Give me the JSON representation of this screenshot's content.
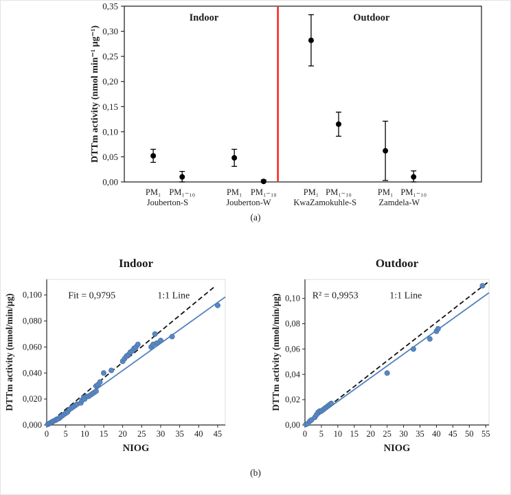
{
  "figure": {
    "label_a": "(a)",
    "label_b": "(b)"
  },
  "chart_data": [
    {
      "id": "dtt-activity-by-site",
      "type": "scatter",
      "subtype": "points-with-error-bars",
      "title": "",
      "xlabel": "",
      "ylabel": "DTTm activity (nmol min⁻¹ µg⁻¹)",
      "ylim": [
        0,
        0.35
      ],
      "yticks": [
        0,
        0.05,
        0.1,
        0.15,
        0.2,
        0.25,
        0.3,
        0.35
      ],
      "ytick_labels": [
        "0,00",
        "0,05",
        "0,10",
        "0,15",
        "0,20",
        "0,25",
        "0,30",
        "0,35"
      ],
      "grid": false,
      "region_labels": [
        {
          "label": "Indoor",
          "x": 0.223
        },
        {
          "label": "Outdoor",
          "x": 0.692
        }
      ],
      "divider": {
        "x": 0.43,
        "color": "#ff0000"
      },
      "point_color": "#000000",
      "points": [
        {
          "label": "PM₁",
          "group": "Jouberton-S",
          "x": 0.081,
          "value": 0.052,
          "err": 0.013
        },
        {
          "label": "PM₁₋₁₀",
          "group": "Jouberton-S",
          "x": 0.162,
          "value": 0.01,
          "err": 0.011
        },
        {
          "label": "PM₁",
          "group": "Jouberton-W",
          "x": 0.308,
          "value": 0.048,
          "err": 0.017
        },
        {
          "label": "PM₁₋₁₀",
          "group": "Jouberton-W",
          "x": 0.39,
          "value": 0.001,
          "err": 0.003
        },
        {
          "label": "PM₁",
          "group": "KwaZamokuhle-S",
          "x": 0.523,
          "value": 0.282,
          "err": 0.051
        },
        {
          "label": "PM₁₋₁₀",
          "group": "KwaZamokuhle-S",
          "x": 0.6,
          "value": 0.115,
          "err": 0.024
        },
        {
          "label": "PM₁",
          "group": "Zamdela-W",
          "x": 0.731,
          "value": 0.062,
          "err": 0.059
        },
        {
          "label": "PM₁₋₁₀",
          "group": "Zamdela-W",
          "x": 0.81,
          "value": 0.01,
          "err": 0.012
        }
      ],
      "group_labels": [
        {
          "label": "Jouberton-S",
          "x": 0.121
        },
        {
          "label": "Jouberton-W",
          "x": 0.348
        },
        {
          "label": "KwaZamokuhle-S",
          "x": 0.562
        },
        {
          "label": "Zamdela-W",
          "x": 0.77
        }
      ]
    },
    {
      "id": "indoor-correlation",
      "type": "scatter",
      "title": "Indoor",
      "xlabel": "NIOG",
      "ylabel": "DTTm activity (nmol/min/µg)",
      "xlim": [
        0,
        47
      ],
      "ylim": [
        0,
        0.112
      ],
      "xticks": [
        0,
        5,
        10,
        15,
        20,
        25,
        30,
        35,
        40,
        45
      ],
      "yticks": [
        0,
        0.02,
        0.04,
        0.06,
        0.08,
        0.1
      ],
      "ytick_labels": [
        "0,000",
        "0,020",
        "0,040",
        "0,060",
        "0,080",
        "0,100"
      ],
      "grid": false,
      "annotations": [
        {
          "text": "Fit = 0,9795",
          "fx": 0.12,
          "fy": 0.13
        },
        {
          "text": "1:1 Line",
          "fx": 0.62,
          "fy": 0.13
        }
      ],
      "fit_line": {
        "x": [
          0,
          47
        ],
        "y": [
          0,
          0.0985
        ]
      },
      "one_to_one_line": {
        "x": [
          0,
          44
        ],
        "y": [
          0,
          0.106
        ]
      },
      "point_color": "#5b87c0",
      "point_stroke": "#4472a8",
      "line_color": "#4f81bd",
      "points": [
        [
          0.3,
          0.0005
        ],
        [
          0.6,
          0.001
        ],
        [
          0.9,
          0.0015
        ],
        [
          1.2,
          0.002
        ],
        [
          1.5,
          0.0025
        ],
        [
          1.8,
          0.003
        ],
        [
          2.2,
          0.0035
        ],
        [
          2.5,
          0.004
        ],
        [
          2.8,
          0.0045
        ],
        [
          3.2,
          0.005
        ],
        [
          3.6,
          0.006
        ],
        [
          4,
          0.007
        ],
        [
          4.5,
          0.008
        ],
        [
          5,
          0.009
        ],
        [
          5.5,
          0.01
        ],
        [
          6,
          0.012
        ],
        [
          6.5,
          0.013
        ],
        [
          7,
          0.014
        ],
        [
          7.5,
          0.015
        ],
        [
          8,
          0.016
        ],
        [
          9,
          0.017
        ],
        [
          9.3,
          0.019
        ],
        [
          9.7,
          0.021
        ],
        [
          10,
          0.02
        ],
        [
          10.5,
          0.022
        ],
        [
          11,
          0.022
        ],
        [
          11.5,
          0.023
        ],
        [
          12,
          0.024
        ],
        [
          12.5,
          0.025
        ],
        [
          13,
          0.026
        ],
        [
          13,
          0.03
        ],
        [
          13.5,
          0.031
        ],
        [
          14,
          0.033
        ],
        [
          15,
          0.04
        ],
        [
          17,
          0.042
        ],
        [
          20,
          0.049
        ],
        [
          20.5,
          0.051
        ],
        [
          21,
          0.053
        ],
        [
          21.5,
          0.054
        ],
        [
          22,
          0.056
        ],
        [
          22.5,
          0.057
        ],
        [
          23,
          0.059
        ],
        [
          23.5,
          0.06
        ],
        [
          24,
          0.062
        ],
        [
          27.5,
          0.06
        ],
        [
          28,
          0.062
        ],
        [
          28.5,
          0.07
        ],
        [
          29,
          0.063
        ],
        [
          30,
          0.065
        ],
        [
          33,
          0.068
        ],
        [
          45,
          0.092
        ]
      ]
    },
    {
      "id": "outdoor-correlation",
      "type": "scatter",
      "title": "Outdoor",
      "xlabel": "NIOG",
      "ylabel": "DTTm activity (nmol/min/µg)",
      "xlim": [
        0,
        56
      ],
      "ylim": [
        0,
        0.115
      ],
      "xticks": [
        0,
        5,
        10,
        15,
        20,
        25,
        30,
        35,
        40,
        45,
        50,
        55
      ],
      "yticks": [
        0,
        0.02,
        0.04,
        0.06,
        0.08,
        0.1
      ],
      "ytick_labels": [
        "0,00",
        "0,02",
        "0,04",
        "0,06",
        "0,08",
        "0,10"
      ],
      "grid": false,
      "annotations": [
        {
          "text": "R² = 0,9953",
          "fx": 0.04,
          "fy": 0.13
        },
        {
          "text": "1:1 Line",
          "fx": 0.46,
          "fy": 0.13
        }
      ],
      "fit_line": {
        "x": [
          0,
          56
        ],
        "y": [
          0,
          0.1045
        ]
      },
      "one_to_one_line": {
        "x": [
          0,
          55.5
        ],
        "y": [
          0,
          0.1125
        ]
      },
      "point_color": "#5b87c0",
      "point_stroke": "#4472a8",
      "line_color": "#4f81bd",
      "points": [
        [
          0.3,
          0.0005
        ],
        [
          0.8,
          0.001
        ],
        [
          1.5,
          0.003
        ],
        [
          2,
          0.004
        ],
        [
          3,
          0.006
        ],
        [
          3.5,
          0.008
        ],
        [
          4,
          0.01
        ],
        [
          4.5,
          0.011
        ],
        [
          5,
          0.011
        ],
        [
          5.5,
          0.012
        ],
        [
          6,
          0.013
        ],
        [
          6.5,
          0.014
        ],
        [
          7,
          0.015
        ],
        [
          7.5,
          0.016
        ],
        [
          8,
          0.017
        ],
        [
          25,
          0.041
        ],
        [
          33,
          0.06
        ],
        [
          38,
          0.068
        ],
        [
          40,
          0.074
        ],
        [
          40.5,
          0.076
        ],
        [
          54,
          0.11
        ]
      ]
    }
  ]
}
